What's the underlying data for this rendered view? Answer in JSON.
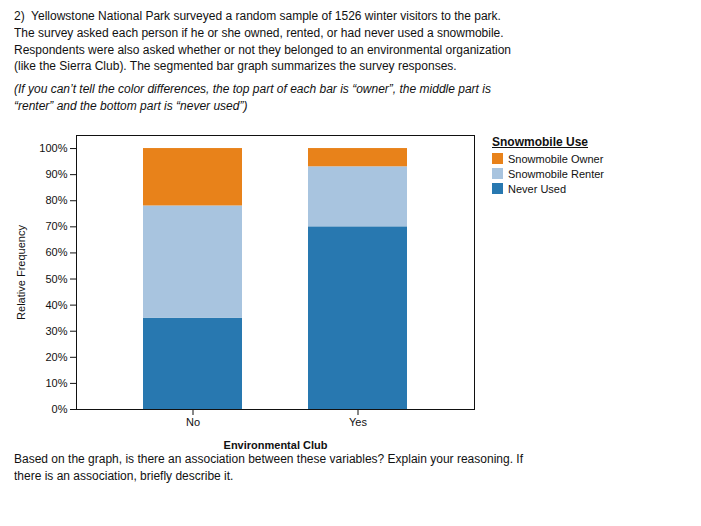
{
  "chart_data": {
    "type": "bar",
    "stacked": true,
    "title": "2)  Yellowstone National Park surveyed a random sample of 1526 winter visitors to the park.\nThe survey asked each person if he or she owned, rented, or had never used a snowmobile.\nRespondents were also asked whether or not they belonged to an environmental organization\n(like the Sierra Club). The segmented bar graph summarizes the survey responses.",
    "subtitle": "(If you can’t tell the color differences, the top part of each bar is “owner”, the middle part is\n“renter” and the bottom part is “never used”)",
    "caption": "Based on the graph, is there an association between these variables? Explain your reasoning. If\nthere is an association, briefly describe it.",
    "xlabel": "Environmental Club",
    "ylabel": "Relative Frequency",
    "categories": [
      "No",
      "Yes"
    ],
    "series": [
      {
        "name": "Never Used",
        "color": "#2878B0",
        "values": [
          35,
          70
        ]
      },
      {
        "name": "Snowmobile Renter",
        "color": "#A8C4DF",
        "values": [
          43,
          23
        ]
      },
      {
        "name": "Snowmobile Owner",
        "color": "#E8821A",
        "values": [
          22,
          7
        ]
      }
    ],
    "legend_title": "Snowmobile Use",
    "legend": "right",
    "ylim": [
      0,
      105
    ],
    "yticks": [
      {
        "value": 0,
        "label": "0%"
      },
      {
        "value": 10,
        "label": "10%"
      },
      {
        "value": 20,
        "label": "20%"
      },
      {
        "value": 30,
        "label": "30%"
      },
      {
        "value": 40,
        "label": "40%"
      },
      {
        "value": 50,
        "label": "50%"
      },
      {
        "value": 60,
        "label": "60%"
      },
      {
        "value": 70,
        "label": "70%"
      },
      {
        "value": 80,
        "label": "80%"
      },
      {
        "value": 90,
        "label": "90%"
      },
      {
        "value": 100,
        "label": "100%"
      }
    ],
    "grid": false
  }
}
